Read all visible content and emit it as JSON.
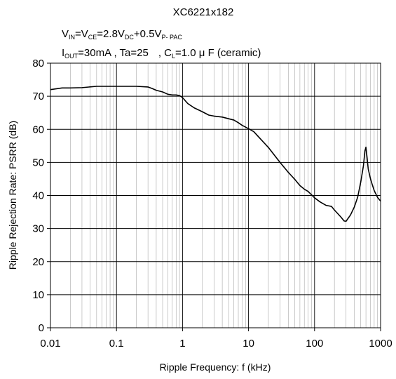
{
  "chart_data": {
    "type": "line",
    "title": "XC6221x182",
    "conditions": {
      "line1": {
        "vin": "V",
        "vin_sub": "IN",
        "vce": "=V",
        "vce_sub": "CE",
        "mid": "=2.8V",
        "dc_sub": "DC",
        "plus": "+0.5V",
        "ppac_sub": "P- PAC"
      },
      "line2": {
        "iout": "I",
        "iout_sub": "OUT",
        "rest": "=30mA , Ta=25",
        "cl": ", C",
        "cl_sub": "L",
        "cl_rest": "=1.0 μ F (ceramic)"
      }
    },
    "xlabel": "Ripple Frequency: f (kHz)",
    "ylabel": "Ripple Rejection Rate: PSRR (dB)",
    "x_scale": "log",
    "xlim": [
      0.01,
      1000
    ],
    "ylim": [
      0,
      80
    ],
    "x_ticks": [
      {
        "value": 0.01,
        "label": "0.01"
      },
      {
        "value": 0.1,
        "label": "0.1"
      },
      {
        "value": 1,
        "label": "1"
      },
      {
        "value": 10,
        "label": "10"
      },
      {
        "value": 100,
        "label": "100"
      },
      {
        "value": 1000,
        "label": "1000"
      }
    ],
    "y_ticks": [
      {
        "value": 0,
        "label": "0"
      },
      {
        "value": 10,
        "label": "10"
      },
      {
        "value": 20,
        "label": "20"
      },
      {
        "value": 30,
        "label": "30"
      },
      {
        "value": 40,
        "label": "40"
      },
      {
        "value": 50,
        "label": "50"
      },
      {
        "value": 60,
        "label": "60"
      },
      {
        "value": 70,
        "label": "70"
      },
      {
        "value": 80,
        "label": "80"
      }
    ],
    "grid": true,
    "line_color": "#000000",
    "series": [
      {
        "x": [
          0.01,
          0.015,
          0.02,
          0.03,
          0.05,
          0.08,
          0.1,
          0.15,
          0.2,
          0.3,
          0.35,
          0.4,
          0.5,
          0.6,
          0.7,
          0.8,
          0.9,
          1.0,
          1.2,
          1.5,
          2,
          2.5,
          3,
          4,
          5,
          6,
          7,
          8,
          10,
          12,
          15,
          20,
          30,
          40,
          50,
          60,
          70,
          80,
          100,
          120,
          150,
          180,
          200,
          250,
          280,
          300,
          350,
          400,
          450,
          500,
          550,
          580,
          600,
          620,
          650,
          700,
          750,
          800,
          900,
          1000
        ],
        "y": [
          72.0,
          72.5,
          72.5,
          72.6,
          73.0,
          73.0,
          73.0,
          73.0,
          73.0,
          72.8,
          72.3,
          71.8,
          71.3,
          70.6,
          70.4,
          70.4,
          70.2,
          69.6,
          67.8,
          66.5,
          65.3,
          64.3,
          64.0,
          63.7,
          63.2,
          62.8,
          62.0,
          61.2,
          60.2,
          59.3,
          57.2,
          54.5,
          50.0,
          47.0,
          44.9,
          43.0,
          41.9,
          41.2,
          39.3,
          38.1,
          37.0,
          36.7,
          35.6,
          33.5,
          32.3,
          32.2,
          34.1,
          36.5,
          39.5,
          44.0,
          49.0,
          53.5,
          54.6,
          52.0,
          48.0,
          45.2,
          43.2,
          41.5,
          39.4,
          38.3
        ]
      }
    ]
  }
}
